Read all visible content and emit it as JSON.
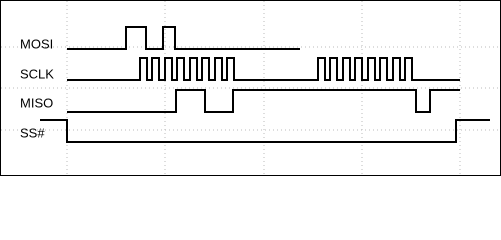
{
  "signals": [
    "MOSI",
    "SCLK",
    "MISO",
    "SS#"
  ]
}
